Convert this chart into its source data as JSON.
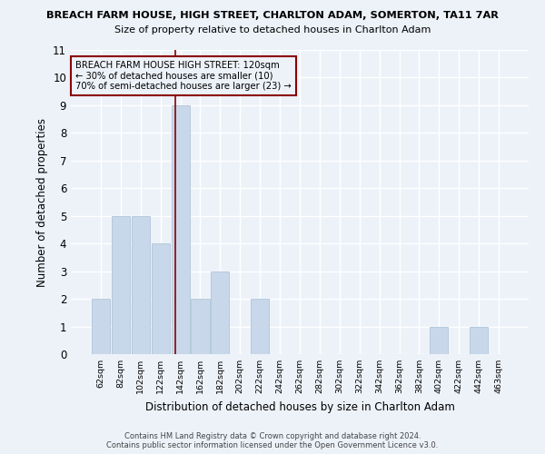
{
  "title1": "BREACH FARM HOUSE, HIGH STREET, CHARLTON ADAM, SOMERTON, TA11 7AR",
  "title2": "Size of property relative to detached houses in Charlton Adam",
  "xlabel": "Distribution of detached houses by size in Charlton Adam",
  "ylabel": "Number of detached properties",
  "categories": [
    "62sqm",
    "82sqm",
    "102sqm",
    "122sqm",
    "142sqm",
    "162sqm",
    "182sqm",
    "202sqm",
    "222sqm",
    "242sqm",
    "262sqm",
    "282sqm",
    "302sqm",
    "322sqm",
    "342sqm",
    "362sqm",
    "382sqm",
    "402sqm",
    "422sqm",
    "442sqm",
    "463sqm"
  ],
  "values": [
    2,
    5,
    5,
    4,
    9,
    2,
    3,
    0,
    2,
    0,
    0,
    0,
    0,
    0,
    0,
    0,
    0,
    1,
    0,
    1,
    0
  ],
  "bar_color": "#c8d8ea",
  "bar_edge_color": "#b0c4d8",
  "ylim": [
    0,
    11
  ],
  "yticks": [
    0,
    1,
    2,
    3,
    4,
    5,
    6,
    7,
    8,
    9,
    10,
    11
  ],
  "vline_x_index": 3.75,
  "vline_color": "#8b0000",
  "annotation_text": "BREACH FARM HOUSE HIGH STREET: 120sqm\n← 30% of detached houses are smaller (10)\n70% of semi-detached houses are larger (23) →",
  "annotation_box_color": "#8b0000",
  "footer1": "Contains HM Land Registry data © Crown copyright and database right 2024.",
  "footer2": "Contains public sector information licensed under the Open Government Licence v3.0.",
  "bg_color": "#edf2f9",
  "grid_color": "#ffffff"
}
